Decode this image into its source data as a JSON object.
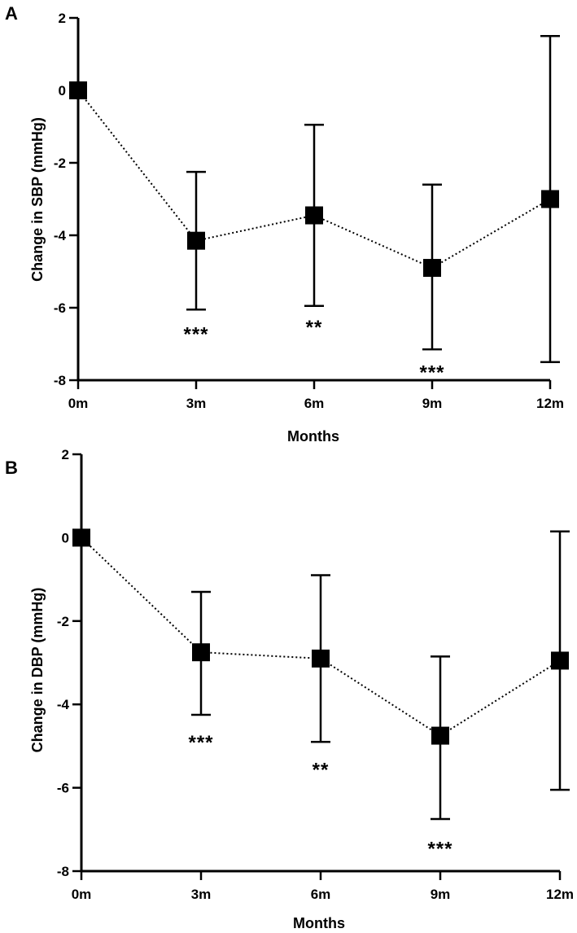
{
  "chart_data": [
    {
      "type": "line",
      "panel_label": "A",
      "xlabel": "Months",
      "ylabel": "Change in SBP (mmHg)",
      "categories": [
        "0m",
        "3m",
        "6m",
        "9m",
        "12m"
      ],
      "ylim": [
        -8,
        2
      ],
      "yticks": [
        2,
        0,
        -2,
        -4,
        -6,
        -8
      ],
      "values": [
        0,
        -4.15,
        -3.45,
        -4.9,
        -3.0
      ],
      "error_lower": [
        0,
        -6.05,
        -5.95,
        -7.15,
        -7.5
      ],
      "error_upper": [
        0,
        -2.25,
        -0.95,
        -2.6,
        1.5
      ],
      "significance": [
        "",
        "***",
        "**",
        "***",
        ""
      ],
      "significance_y": [
        null,
        -6.6,
        -6.4,
        -7.65,
        null
      ]
    },
    {
      "type": "line",
      "panel_label": "B",
      "xlabel": "Months",
      "ylabel": "Change in DBP (mmHg)",
      "categories": [
        "0m",
        "3m",
        "6m",
        "9m",
        "12m"
      ],
      "ylim": [
        -8,
        2
      ],
      "yticks": [
        2,
        0,
        -2,
        -4,
        -6,
        -8
      ],
      "values": [
        0,
        -2.75,
        -2.9,
        -4.75,
        -2.95
      ],
      "error_lower": [
        0,
        -4.25,
        -4.9,
        -6.75,
        -6.05
      ],
      "error_upper": [
        0,
        -1.3,
        -0.9,
        -2.85,
        0.15
      ],
      "significance": [
        "",
        "***",
        "**",
        "***",
        ""
      ],
      "significance_y": [
        null,
        -4.8,
        -5.45,
        -7.35,
        null
      ]
    }
  ]
}
